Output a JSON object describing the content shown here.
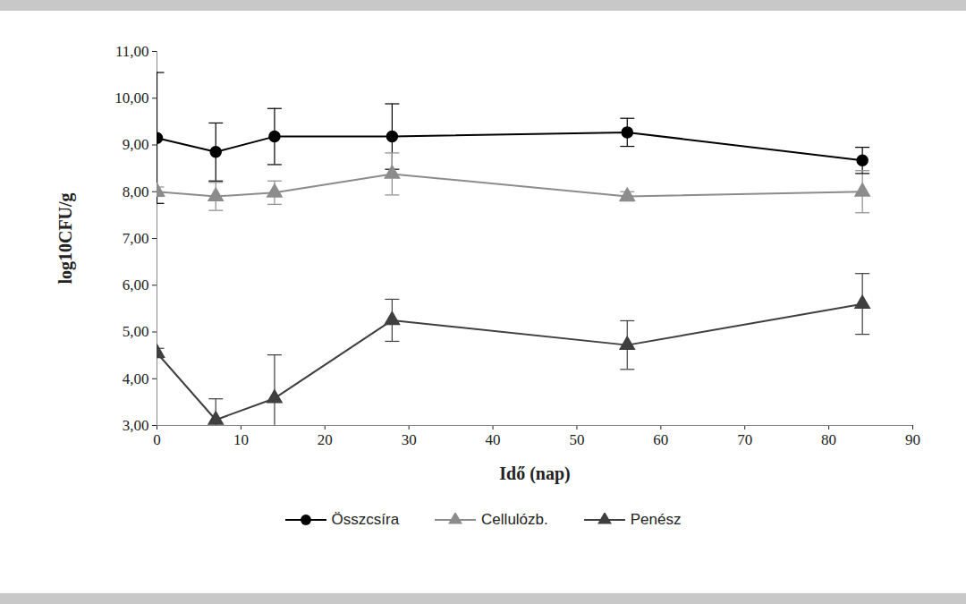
{
  "chart_data": {
    "type": "line",
    "xlabel": "Idő (nap)",
    "ylabel": "log10CFU/g",
    "x": [
      0,
      7,
      14,
      28,
      56,
      84
    ],
    "series": [
      {
        "name": "Összcsíra",
        "color": "#000000",
        "marker": "circle",
        "values": [
          9.15,
          8.85,
          9.18,
          9.18,
          9.27,
          8.67
        ],
        "errors": [
          1.4,
          0.62,
          0.6,
          0.7,
          0.3,
          0.28
        ]
      },
      {
        "name": "Cellulózb.",
        "color": "#8c8c8c",
        "marker": "triangle",
        "values": [
          8.0,
          7.9,
          7.98,
          8.38,
          7.9,
          8.0
        ],
        "errors": [
          0.1,
          0.3,
          0.25,
          0.45,
          0.1,
          0.45
        ]
      },
      {
        "name": "Penész",
        "color": "#3f3f3f",
        "marker": "triangle",
        "values": [
          4.55,
          3.12,
          3.58,
          5.25,
          4.72,
          5.6
        ],
        "errors": [
          0.1,
          0.45,
          0.93,
          0.45,
          0.52,
          0.65
        ]
      }
    ],
    "xlim": [
      0,
      90
    ],
    "xticks": [
      0,
      10,
      20,
      30,
      40,
      50,
      60,
      70,
      80,
      90
    ],
    "ylim": [
      3,
      11
    ],
    "yticks": [
      {
        "value": 3,
        "label": "3,00"
      },
      {
        "value": 4,
        "label": "4,00"
      },
      {
        "value": 5,
        "label": "5,00"
      },
      {
        "value": 6,
        "label": "6,00"
      },
      {
        "value": 7,
        "label": "7,00"
      },
      {
        "value": 8,
        "label": "8,00"
      },
      {
        "value": 9,
        "label": "9,00"
      },
      {
        "value": 10,
        "label": "10,00"
      },
      {
        "value": 11,
        "label": "11,00"
      }
    ],
    "grid": false,
    "legend": "bottom"
  }
}
